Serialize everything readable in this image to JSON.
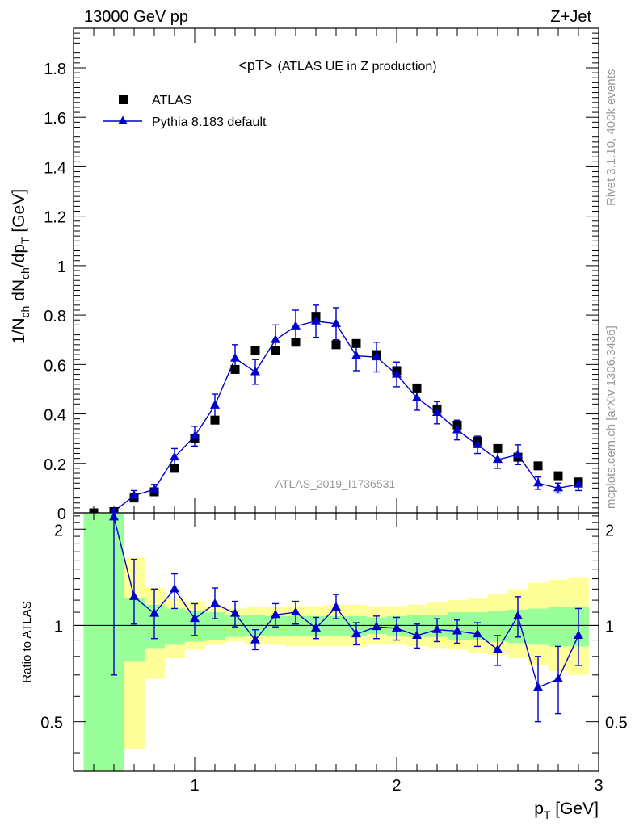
{
  "header": {
    "energy_label": "13000 GeV pp",
    "process_label": "Z+Jet",
    "side_text_top": "Rivet 3.1.10,  400k events",
    "side_text_bottom": "mcplots.cern.ch [arXiv:1306.3436]"
  },
  "colors": {
    "mc_line": "#0000cc",
    "data_marker": "#000000",
    "band_inner": "#99ff99",
    "band_outer": "#ffff99",
    "watermark": "#999999"
  },
  "chart_data": [
    {
      "type": "scatter",
      "title": "<pT>",
      "title_suffix": "(ATLAS UE in Z production)",
      "analysis_id": "ATLAS_2019_I1736531",
      "ylabel": "1/N_ch dN_ch/dp_T [GeV]",
      "xlim": [
        0.4,
        3.0
      ],
      "ylim": [
        0,
        1.96
      ],
      "y_ticks": [
        0,
        0.2,
        0.4,
        0.6,
        0.8,
        1,
        1.2,
        1.4,
        1.6,
        1.8
      ],
      "y_tick_labels": [
        "0",
        "0.2",
        "0.4",
        "0.6",
        "0.8",
        "1",
        "1.2",
        "1.4",
        "1.6",
        "1.8"
      ],
      "legend": [
        "ATLAS",
        "Pythia 8.183 default"
      ],
      "x": [
        0.5,
        0.6,
        0.7,
        0.8,
        0.9,
        1.0,
        1.1,
        1.2,
        1.3,
        1.4,
        1.5,
        1.6,
        1.7,
        1.8,
        1.9,
        2.0,
        2.1,
        2.2,
        2.3,
        2.4,
        2.5,
        2.6,
        2.7,
        2.8,
        2.9
      ],
      "series": [
        {
          "name": "ATLAS",
          "values": [
            0.0,
            0.005,
            0.06,
            0.085,
            0.18,
            0.3,
            0.375,
            0.58,
            0.655,
            0.655,
            0.69,
            0.795,
            0.68,
            0.685,
            0.64,
            0.575,
            0.505,
            0.42,
            0.355,
            0.29,
            0.26,
            0.225,
            0.19,
            0.15,
            0.125
          ]
        },
        {
          "name": "Pythia 8.183 default",
          "values": [
            null,
            0.005,
            0.07,
            0.095,
            0.225,
            0.31,
            0.435,
            0.625,
            0.57,
            0.7,
            0.755,
            0.775,
            0.765,
            0.635,
            0.63,
            0.56,
            0.465,
            0.405,
            0.335,
            0.275,
            0.215,
            0.235,
            0.12,
            0.1,
            0.115
          ],
          "errors": [
            null,
            0.005,
            0.02,
            0.02,
            0.035,
            0.04,
            0.045,
            0.055,
            0.05,
            0.06,
            0.065,
            0.065,
            0.065,
            0.06,
            0.06,
            0.05,
            0.05,
            0.045,
            0.04,
            0.035,
            0.035,
            0.04,
            0.025,
            0.02,
            0.025
          ]
        }
      ]
    },
    {
      "type": "line",
      "ylabel": "Ratio to ATLAS",
      "xlabel": "p_T [GeV]",
      "xlim": [
        0.4,
        3.0
      ],
      "ylim": [
        0.35,
        2.25
      ],
      "y_scale": "log",
      "reference_line": 1,
      "y_tick_labels": [
        {
          "value": 0.5,
          "label": "0.5"
        },
        {
          "value": 1,
          "label": "1"
        },
        {
          "value": 2,
          "label": "2"
        }
      ],
      "x_tick_labels": [
        {
          "value": 1,
          "label": "1"
        },
        {
          "value": 2,
          "label": "2"
        },
        {
          "value": 3,
          "label": "3"
        }
      ],
      "bands": {
        "bin_edges": [
          0.45,
          0.55,
          0.65,
          0.75,
          0.85,
          0.95,
          1.05,
          1.15,
          1.25,
          1.35,
          1.45,
          1.55,
          1.65,
          1.75,
          1.85,
          1.95,
          2.05,
          2.15,
          2.25,
          2.35,
          2.45,
          2.55,
          2.65,
          2.75,
          2.85,
          2.95
        ],
        "inner_low": [
          0.0,
          0.0,
          0.77,
          0.85,
          0.87,
          0.89,
          0.9,
          0.92,
          0.925,
          0.93,
          0.93,
          0.93,
          0.93,
          0.93,
          0.94,
          0.93,
          0.92,
          0.92,
          0.9,
          0.9,
          0.89,
          0.88,
          0.87,
          0.86,
          0.86
        ],
        "inner_high": [
          3.0,
          3.0,
          1.22,
          1.16,
          1.13,
          1.11,
          1.1,
          1.08,
          1.075,
          1.07,
          1.07,
          1.07,
          1.07,
          1.07,
          1.06,
          1.07,
          1.08,
          1.08,
          1.1,
          1.1,
          1.11,
          1.12,
          1.13,
          1.14,
          1.14
        ],
        "outer_low": [
          0.0,
          0.0,
          0.41,
          0.68,
          0.79,
          0.84,
          0.87,
          0.89,
          0.87,
          0.87,
          0.86,
          0.86,
          0.86,
          0.86,
          0.87,
          0.87,
          0.86,
          0.85,
          0.84,
          0.82,
          0.81,
          0.79,
          0.75,
          0.72,
          0.7
        ],
        "outer_high": [
          3.0,
          3.0,
          1.63,
          1.31,
          1.22,
          1.18,
          1.15,
          1.13,
          1.14,
          1.14,
          1.15,
          1.15,
          1.16,
          1.16,
          1.15,
          1.15,
          1.16,
          1.18,
          1.2,
          1.22,
          1.25,
          1.3,
          1.36,
          1.39,
          1.41
        ]
      },
      "series": [
        {
          "name": "Pythia 8.183 default / ATLAS",
          "x": [
            0.6,
            0.7,
            0.8,
            0.9,
            1.0,
            1.1,
            1.2,
            1.3,
            1.4,
            1.5,
            1.6,
            1.7,
            1.8,
            1.9,
            2.0,
            2.1,
            2.2,
            2.3,
            2.4,
            2.5,
            2.6,
            2.7,
            2.8,
            2.9
          ],
          "values": [
            2.18,
            1.23,
            1.09,
            1.3,
            1.05,
            1.17,
            1.09,
            0.9,
            1.08,
            1.1,
            0.98,
            1.14,
            0.94,
            0.99,
            0.98,
            0.93,
            0.97,
            0.96,
            0.94,
            0.84,
            1.07,
            0.64,
            0.68,
            0.93
          ],
          "err_low": [
            1.48,
            0.22,
            0.18,
            0.17,
            0.12,
            0.12,
            0.1,
            0.06,
            0.09,
            0.09,
            0.07,
            0.09,
            0.07,
            0.08,
            0.08,
            0.08,
            0.08,
            0.08,
            0.08,
            0.09,
            0.15,
            0.14,
            0.15,
            0.18
          ],
          "err_high": [
            0.07,
            0.38,
            0.21,
            0.15,
            0.12,
            0.14,
            0.1,
            0.07,
            0.09,
            0.09,
            0.08,
            0.11,
            0.08,
            0.08,
            0.08,
            0.08,
            0.08,
            0.08,
            0.08,
            0.09,
            0.16,
            0.16,
            0.18,
            0.2
          ]
        }
      ]
    }
  ]
}
